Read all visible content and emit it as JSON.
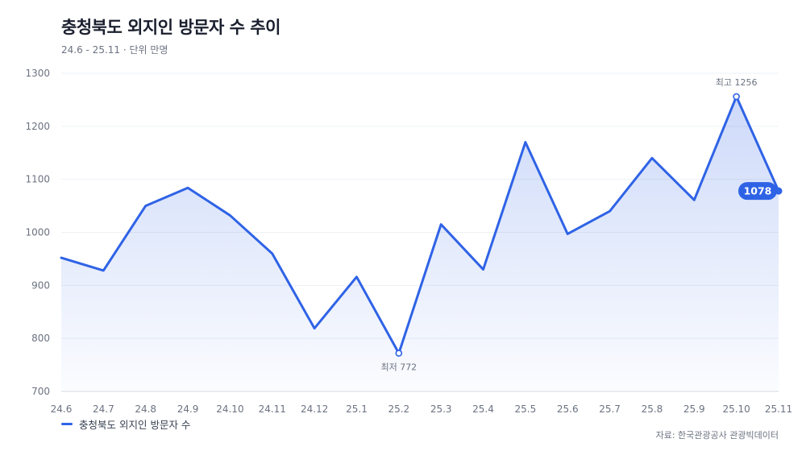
{
  "header": {
    "title": "충청북도 외지인 방문자 수 추이",
    "subtitle": "24.6 - 25.11 · 단위 만명"
  },
  "legend": {
    "label": "충청북도 외지인 방문자 수"
  },
  "source": "자료: 한국관광공사 관광빅데이터",
  "colors": {
    "line": "#2f63e6",
    "grid": "#edf0f4",
    "axis_text": "#6b7280"
  },
  "chart_data": {
    "type": "area",
    "title": "충청북도 외지인 방문자 수 추이",
    "subtitle": "24.6 - 25.11 · 단위 만명",
    "xlabel": "",
    "ylabel": "",
    "categories": [
      "24.6",
      "24.7",
      "24.8",
      "24.9",
      "24.10",
      "24.11",
      "24.12",
      "25.1",
      "25.2",
      "25.3",
      "25.4",
      "25.5",
      "25.6",
      "25.7",
      "25.8",
      "25.9",
      "25.10",
      "25.11"
    ],
    "series": [
      {
        "name": "충청북도 외지인 방문자 수",
        "values": [
          952,
          928,
          1050,
          1084,
          1032,
          960,
          819,
          916,
          772,
          1015,
          930,
          1170,
          997,
          1040,
          1140,
          1061,
          1256,
          1078
        ]
      }
    ],
    "ylim": [
      700,
      1300
    ],
    "yticks": [
      700,
      800,
      900,
      1000,
      1100,
      1200,
      1300
    ],
    "grid": true,
    "legend_position": "bottom-left",
    "annotations": [
      {
        "category": "25.10",
        "value": 1256,
        "text": "최고 1256",
        "kind": "max"
      },
      {
        "category": "25.2",
        "value": 772,
        "text": "최저 772",
        "kind": "min"
      },
      {
        "category": "25.11",
        "value": 1078,
        "text": "1078",
        "kind": "last"
      }
    ]
  }
}
